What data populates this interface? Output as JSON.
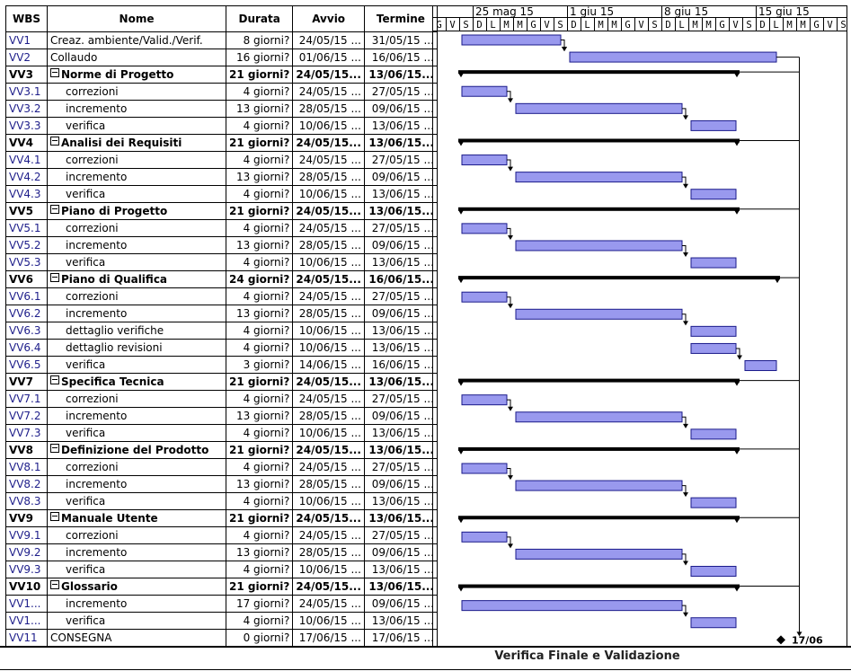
{
  "headers": {
    "wbs": "WBS",
    "name": "Nome",
    "duration": "Durata",
    "start": "Avvio",
    "end": "Termine"
  },
  "timeline": {
    "week_labels": [
      "25 mag 15",
      "1 giu 15",
      "8 giu 15",
      "15 giu 15"
    ],
    "first_day": "2015-05-22",
    "day_letters": [
      "G",
      "V",
      "S",
      "D",
      "L",
      "M",
      "M",
      "G",
      "V",
      "S",
      "D",
      "L",
      "M",
      "M",
      "G",
      "V",
      "S",
      "D",
      "L",
      "M",
      "M",
      "G",
      "V",
      "S",
      "D",
      "L",
      "M",
      "M",
      "G",
      "V",
      "S",
      "D"
    ]
  },
  "tasks": [
    {
      "wbs": "VV1",
      "name": "Creaz. ambiente/Valid./Verif.",
      "duration": "8 giorni?",
      "start": "24/05/15 ...",
      "end": "31/05/15 ...",
      "level": 1,
      "summary": false,
      "start_date": "2015-05-24",
      "end_date": "2015-05-31"
    },
    {
      "wbs": "VV2",
      "name": "Collaudo",
      "duration": "16 giorni?",
      "start": "01/06/15 ...",
      "end": "16/06/15 ...",
      "level": 1,
      "summary": false,
      "start_date": "2015-06-01",
      "end_date": "2015-06-16"
    },
    {
      "wbs": "VV3",
      "name": "Norme di Progetto",
      "duration": "21 giorni?",
      "start": "24/05/15...",
      "end": "13/06/15...",
      "level": 1,
      "summary": true,
      "start_date": "2015-05-24",
      "end_date": "2015-06-13"
    },
    {
      "wbs": "VV3.1",
      "name": "correzioni",
      "duration": "4 giorni?",
      "start": "24/05/15 ...",
      "end": "27/05/15 ...",
      "level": 2,
      "summary": false,
      "start_date": "2015-05-24",
      "end_date": "2015-05-27"
    },
    {
      "wbs": "VV3.2",
      "name": "incremento",
      "duration": "13 giorni?",
      "start": "28/05/15 ...",
      "end": "09/06/15 ...",
      "level": 2,
      "summary": false,
      "start_date": "2015-05-28",
      "end_date": "2015-06-09"
    },
    {
      "wbs": "VV3.3",
      "name": "verifica",
      "duration": "4 giorni?",
      "start": "10/06/15 ...",
      "end": "13/06/15 ...",
      "level": 2,
      "summary": false,
      "start_date": "2015-06-10",
      "end_date": "2015-06-13"
    },
    {
      "wbs": "VV4",
      "name": "Analisi dei Requisiti",
      "duration": "21 giorni?",
      "start": "24/05/15...",
      "end": "13/06/15...",
      "level": 1,
      "summary": true,
      "start_date": "2015-05-24",
      "end_date": "2015-06-13"
    },
    {
      "wbs": "VV4.1",
      "name": "correzioni",
      "duration": "4 giorni?",
      "start": "24/05/15 ...",
      "end": "27/05/15 ...",
      "level": 2,
      "summary": false,
      "start_date": "2015-05-24",
      "end_date": "2015-05-27"
    },
    {
      "wbs": "VV4.2",
      "name": "incremento",
      "duration": "13 giorni?",
      "start": "28/05/15 ...",
      "end": "09/06/15 ...",
      "level": 2,
      "summary": false,
      "start_date": "2015-05-28",
      "end_date": "2015-06-09"
    },
    {
      "wbs": "VV4.3",
      "name": "verifica",
      "duration": "4 giorni?",
      "start": "10/06/15 ...",
      "end": "13/06/15 ...",
      "level": 2,
      "summary": false,
      "start_date": "2015-06-10",
      "end_date": "2015-06-13"
    },
    {
      "wbs": "VV5",
      "name": "Piano di Progetto",
      "duration": "21 giorni?",
      "start": "24/05/15...",
      "end": "13/06/15...",
      "level": 1,
      "summary": true,
      "start_date": "2015-05-24",
      "end_date": "2015-06-13"
    },
    {
      "wbs": "VV5.1",
      "name": "correzioni",
      "duration": "4 giorni?",
      "start": "24/05/15 ...",
      "end": "27/05/15 ...",
      "level": 2,
      "summary": false,
      "start_date": "2015-05-24",
      "end_date": "2015-05-27"
    },
    {
      "wbs": "VV5.2",
      "name": "incremento",
      "duration": "13 giorni?",
      "start": "28/05/15 ...",
      "end": "09/06/15 ...",
      "level": 2,
      "summary": false,
      "start_date": "2015-05-28",
      "end_date": "2015-06-09"
    },
    {
      "wbs": "VV5.3",
      "name": "verifica",
      "duration": "4 giorni?",
      "start": "10/06/15 ...",
      "end": "13/06/15 ...",
      "level": 2,
      "summary": false,
      "start_date": "2015-06-10",
      "end_date": "2015-06-13"
    },
    {
      "wbs": "VV6",
      "name": "Piano di Qualifica",
      "duration": "24 giorni?",
      "start": "24/05/15...",
      "end": "16/06/15...",
      "level": 1,
      "summary": true,
      "start_date": "2015-05-24",
      "end_date": "2015-06-16"
    },
    {
      "wbs": "VV6.1",
      "name": "correzioni",
      "duration": "4 giorni?",
      "start": "24/05/15 ...",
      "end": "27/05/15 ...",
      "level": 2,
      "summary": false,
      "start_date": "2015-05-24",
      "end_date": "2015-05-27"
    },
    {
      "wbs": "VV6.2",
      "name": "incremento",
      "duration": "13 giorni?",
      "start": "28/05/15 ...",
      "end": "09/06/15 ...",
      "level": 2,
      "summary": false,
      "start_date": "2015-05-28",
      "end_date": "2015-06-09"
    },
    {
      "wbs": "VV6.3",
      "name": "dettaglio verifiche",
      "duration": "4 giorni?",
      "start": "10/06/15 ...",
      "end": "13/06/15 ...",
      "level": 2,
      "summary": false,
      "start_date": "2015-06-10",
      "end_date": "2015-06-13"
    },
    {
      "wbs": "VV6.4",
      "name": "dettaglio revisioni",
      "duration": "4 giorni?",
      "start": "10/06/15 ...",
      "end": "13/06/15 ...",
      "level": 2,
      "summary": false,
      "start_date": "2015-06-10",
      "end_date": "2015-06-13"
    },
    {
      "wbs": "VV6.5",
      "name": "verifica",
      "duration": "3 giorni?",
      "start": "14/06/15 ...",
      "end": "16/06/15 ...",
      "level": 2,
      "summary": false,
      "start_date": "2015-06-14",
      "end_date": "2015-06-16"
    },
    {
      "wbs": "VV7",
      "name": "Specifica Tecnica",
      "duration": "21 giorni?",
      "start": "24/05/15...",
      "end": "13/06/15...",
      "level": 1,
      "summary": true,
      "start_date": "2015-05-24",
      "end_date": "2015-06-13"
    },
    {
      "wbs": "VV7.1",
      "name": "correzioni",
      "duration": "4 giorni?",
      "start": "24/05/15 ...",
      "end": "27/05/15 ...",
      "level": 2,
      "summary": false,
      "start_date": "2015-05-24",
      "end_date": "2015-05-27"
    },
    {
      "wbs": "VV7.2",
      "name": "incremento",
      "duration": "13 giorni?",
      "start": "28/05/15 ...",
      "end": "09/06/15 ...",
      "level": 2,
      "summary": false,
      "start_date": "2015-05-28",
      "end_date": "2015-06-09"
    },
    {
      "wbs": "VV7.3",
      "name": "verifica",
      "duration": "4 giorni?",
      "start": "10/06/15 ...",
      "end": "13/06/15 ...",
      "level": 2,
      "summary": false,
      "start_date": "2015-06-10",
      "end_date": "2015-06-13"
    },
    {
      "wbs": "VV8",
      "name": "Definizione del Prodotto",
      "duration": "21 giorni?",
      "start": "24/05/15...",
      "end": "13/06/15...",
      "level": 1,
      "summary": true,
      "start_date": "2015-05-24",
      "end_date": "2015-06-13"
    },
    {
      "wbs": "VV8.1",
      "name": "correzioni",
      "duration": "4 giorni?",
      "start": "24/05/15 ...",
      "end": "27/05/15 ...",
      "level": 2,
      "summary": false,
      "start_date": "2015-05-24",
      "end_date": "2015-05-27"
    },
    {
      "wbs": "VV8.2",
      "name": "incremento",
      "duration": "13 giorni?",
      "start": "28/05/15 ...",
      "end": "09/06/15 ...",
      "level": 2,
      "summary": false,
      "start_date": "2015-05-28",
      "end_date": "2015-06-09"
    },
    {
      "wbs": "VV8.3",
      "name": "verifica",
      "duration": "4 giorni?",
      "start": "10/06/15 ...",
      "end": "13/06/15 ...",
      "level": 2,
      "summary": false,
      "start_date": "2015-06-10",
      "end_date": "2015-06-13"
    },
    {
      "wbs": "VV9",
      "name": "Manuale Utente",
      "duration": "21 giorni?",
      "start": "24/05/15...",
      "end": "13/06/15...",
      "level": 1,
      "summary": true,
      "start_date": "2015-05-24",
      "end_date": "2015-06-13"
    },
    {
      "wbs": "VV9.1",
      "name": "correzioni",
      "duration": "4 giorni?",
      "start": "24/05/15 ...",
      "end": "27/05/15 ...",
      "level": 2,
      "summary": false,
      "start_date": "2015-05-24",
      "end_date": "2015-05-27"
    },
    {
      "wbs": "VV9.2",
      "name": "incremento",
      "duration": "13 giorni?",
      "start": "28/05/15 ...",
      "end": "09/06/15 ...",
      "level": 2,
      "summary": false,
      "start_date": "2015-05-28",
      "end_date": "2015-06-09"
    },
    {
      "wbs": "VV9.3",
      "name": "verifica",
      "duration": "4 giorni?",
      "start": "10/06/15 ...",
      "end": "13/06/15 ...",
      "level": 2,
      "summary": false,
      "start_date": "2015-06-10",
      "end_date": "2015-06-13"
    },
    {
      "wbs": "VV10",
      "name": "Glossario",
      "duration": "21 giorni?",
      "start": "24/05/15...",
      "end": "13/06/15...",
      "level": 1,
      "summary": true,
      "start_date": "2015-05-24",
      "end_date": "2015-06-13"
    },
    {
      "wbs": "VV1...",
      "name": "incremento",
      "duration": "17 giorni?",
      "start": "24/05/15 ...",
      "end": "09/06/15 ...",
      "level": 2,
      "summary": false,
      "start_date": "2015-05-24",
      "end_date": "2015-06-09"
    },
    {
      "wbs": "VV1...",
      "name": "verifica",
      "duration": "4 giorni?",
      "start": "10/06/15 ...",
      "end": "13/06/15 ...",
      "level": 2,
      "summary": false,
      "start_date": "2015-06-10",
      "end_date": "2015-06-13"
    },
    {
      "wbs": "VV11",
      "name": "CONSEGNA",
      "duration": "0 giorni?",
      "start": "17/06/15 ...",
      "end": "17/06/15 ...",
      "level": 1,
      "summary": false,
      "milestone": true,
      "start_date": "2015-06-17",
      "end_date": "2015-06-17"
    }
  ],
  "milestone_label": "17/06",
  "footer_title": "Verifica Finale e Validazione",
  "colors": {
    "task_bar": "#9999ee",
    "task_bar_border": "#1a1a8a",
    "summary_bar": "#000000",
    "wbs_text": "#1e1e8a"
  }
}
